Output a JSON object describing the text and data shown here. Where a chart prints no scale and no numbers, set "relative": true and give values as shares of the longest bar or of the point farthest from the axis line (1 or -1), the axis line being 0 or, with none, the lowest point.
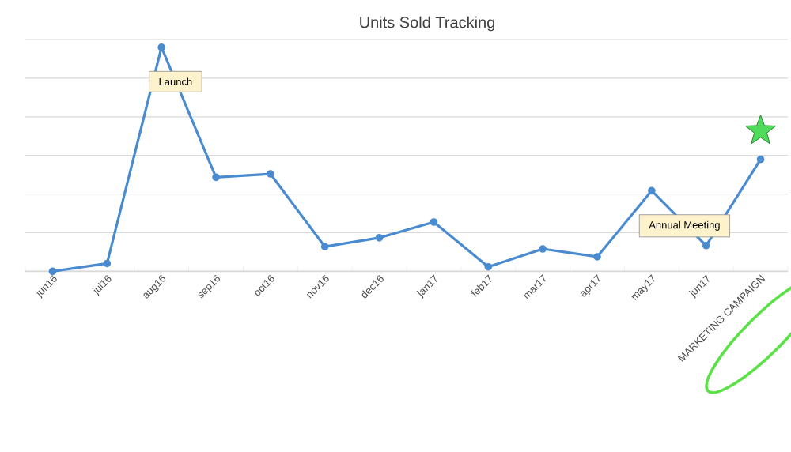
{
  "chart_data": {
    "type": "line",
    "title": "Units Sold Tracking",
    "relative": true,
    "grid": "y",
    "marker": "circle",
    "line_style": "solid",
    "categories": [
      "jun16",
      "jul16",
      "aug16",
      "sep16",
      "oct16",
      "nov16",
      "dec16",
      "jan17",
      "feb17",
      "mar17",
      "apr17",
      "may17",
      "jun17",
      "MARKETING CAMPAIGN"
    ],
    "series": [
      {
        "color": "#4a8bd0",
        "values": [
          0,
          0.035,
          1,
          0.42,
          0.435,
          0.11,
          0.15,
          0.22,
          0.02,
          0.1,
          0.065,
          0.36,
          0.115,
          0.5
        ]
      }
    ],
    "annotations": [
      {
        "text": "Launch",
        "x": "aug16",
        "y": 1
      },
      {
        "text": "Annual Meeting",
        "x": "may17",
        "y": 0.36
      }
    ]
  }
}
